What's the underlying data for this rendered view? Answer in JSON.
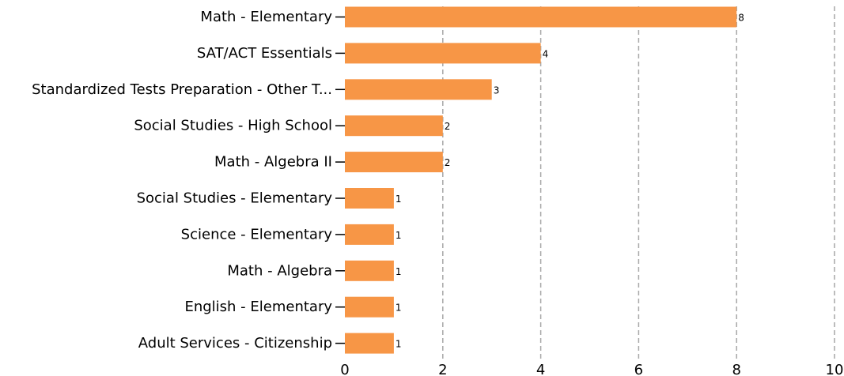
{
  "chart_data": {
    "type": "bar",
    "orientation": "horizontal",
    "categories": [
      "Math - Elementary",
      "SAT/ACT Essentials",
      "Standardized Tests Preparation - Other T...",
      "Social Studies - High School",
      "Math - Algebra II",
      "Social Studies - Elementary",
      "Science - Elementary",
      "Math - Algebra",
      "English - Elementary",
      "Adult Services - Citizenship"
    ],
    "values": [
      8,
      4,
      3,
      2,
      2,
      1,
      1,
      1,
      1,
      1
    ],
    "data_labels": [
      "8",
      "4",
      "3",
      "2",
      "2",
      "1",
      "1",
      "1",
      "1",
      "1"
    ],
    "xlim": [
      0,
      10
    ],
    "x_ticks": [
      "0",
      "2",
      "4",
      "6",
      "8",
      "10"
    ],
    "x_tick_values": [
      0,
      2,
      4,
      6,
      8,
      10
    ],
    "grid": "vertical dashed",
    "legend": "none",
    "title": "",
    "xlabel": "",
    "ylabel": "",
    "colors": {
      "bar": "#f79646",
      "grid": "#a6a6a6",
      "text": "#000000"
    }
  }
}
